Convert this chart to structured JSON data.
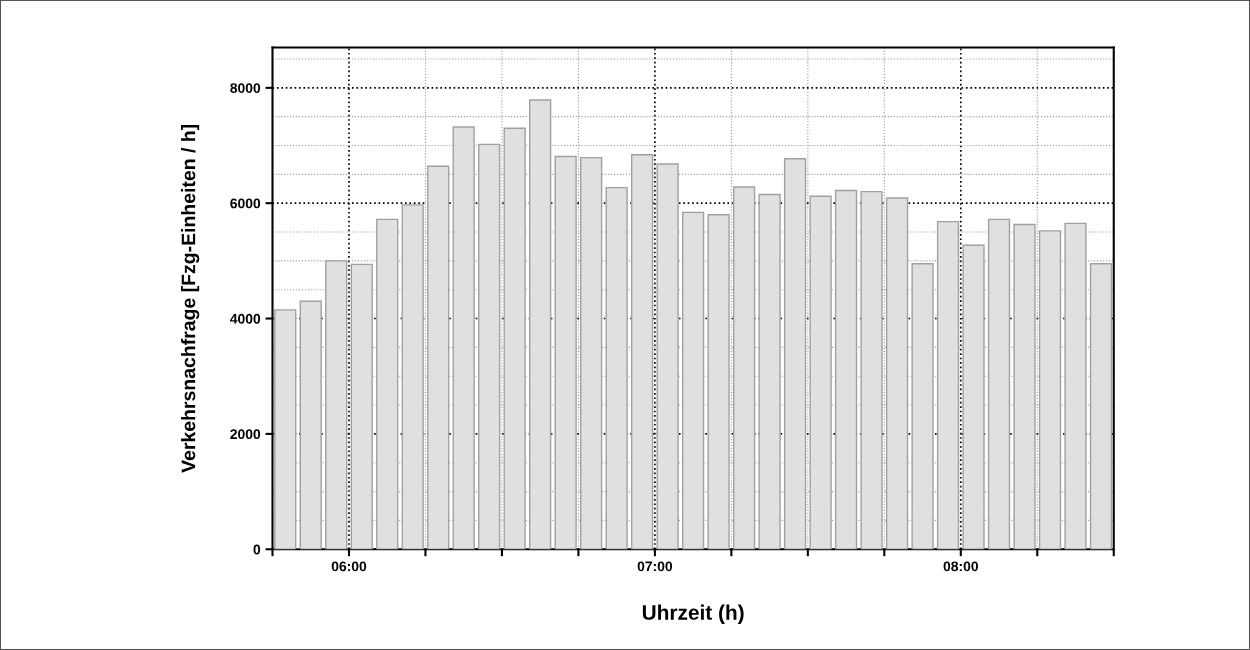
{
  "chart_data": {
    "type": "bar",
    "xlabel": "Uhrzeit (h)",
    "ylabel": "Verkehrsnachfrage [Fzg-Einheiten / h]",
    "x": [
      5.7917,
      5.875,
      5.9583,
      6.0417,
      6.125,
      6.2083,
      6.2917,
      6.375,
      6.4583,
      6.5417,
      6.625,
      6.7083,
      6.7917,
      6.875,
      6.9583,
      7.0417,
      7.125,
      7.2083,
      7.2917,
      7.375,
      7.4583,
      7.5417,
      7.625,
      7.7083,
      7.7917,
      7.875,
      7.9583,
      8.0417,
      8.125,
      8.2083,
      8.2917,
      8.375,
      8.4583
    ],
    "values": [
      4150,
      4300,
      5000,
      4940,
      5720,
      5970,
      6640,
      7320,
      7020,
      7300,
      7790,
      6810,
      6790,
      6270,
      6840,
      6680,
      5840,
      5800,
      6280,
      6150,
      6770,
      6120,
      6220,
      6200,
      6090,
      4950,
      5680,
      5270,
      5720,
      5630,
      5520,
      5650,
      4950
    ],
    "color": "#e0e0e0",
    "xlim": [
      5.75,
      8.5
    ],
    "xticks": [
      {
        "value": 5.75,
        "label": null
      },
      {
        "value": 6,
        "label": "06:00"
      },
      {
        "value": 6.25,
        "label": null
      },
      {
        "value": 6.5,
        "label": null
      },
      {
        "value": 6.75,
        "label": null
      },
      {
        "value": 7,
        "label": "07:00"
      },
      {
        "value": 7.25,
        "label": null
      },
      {
        "value": 7.5,
        "label": null
      },
      {
        "value": 7.75,
        "label": null
      },
      {
        "value": 8,
        "label": "08:00"
      },
      {
        "value": 8.25,
        "label": null
      },
      {
        "value": 8.5,
        "label": null
      }
    ],
    "ylim": [
      0,
      8700
    ],
    "yticks": [
      0,
      2000,
      4000,
      6000,
      8000
    ],
    "grid": true
  }
}
